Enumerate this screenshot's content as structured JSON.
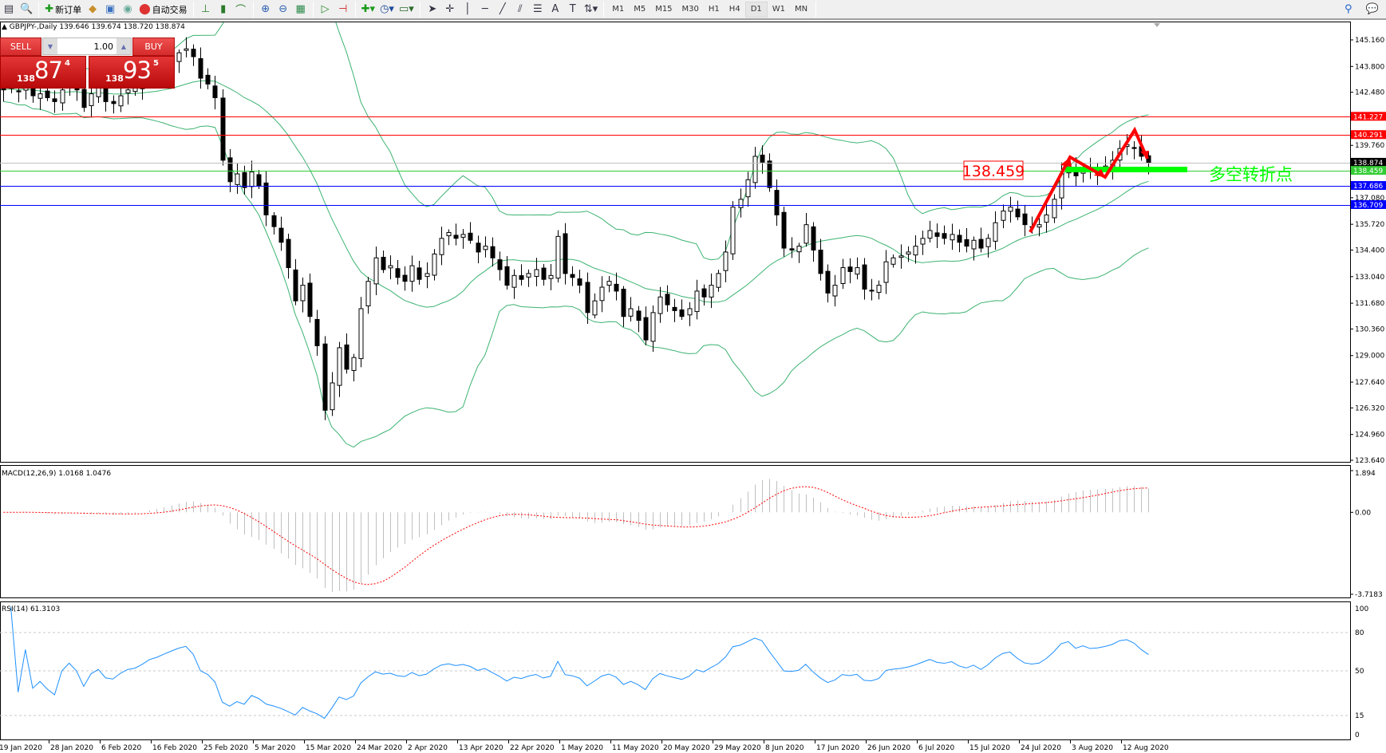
{
  "toolbar": {
    "new_order_label": "新订单",
    "auto_trading_label": "自动交易",
    "timeframes": [
      "M1",
      "M5",
      "M15",
      "M30",
      "H1",
      "H4",
      "D1",
      "W1",
      "MN"
    ],
    "active_timeframe": "D1"
  },
  "chart_header": {
    "symbol_line": "GBPJPY-,Daily  139.646 139.674 138.720 138.874"
  },
  "trade_panel": {
    "sell_label": "SELL",
    "buy_label": "BUY",
    "lot": "1.00",
    "sell_price": {
      "big": "138",
      "main": "87",
      "pip": "4"
    },
    "buy_price": {
      "big": "138",
      "main": "93",
      "pip": "5"
    }
  },
  "chart_data": {
    "type": "candlestick",
    "symbol": "GBPJPY-",
    "period": "Daily",
    "ylim": [
      123.64,
      145.16
    ],
    "price_ticks": [
      "145.160",
      "143.800",
      "142.480",
      "139.760",
      "137.080",
      "135.720",
      "134.400",
      "133.040",
      "131.680",
      "130.360",
      "129.000",
      "127.640",
      "126.320",
      "124.960",
      "123.640"
    ],
    "closes": [
      142.6,
      142.7,
      142.5,
      142.8,
      142.3,
      142.4,
      142.2,
      142.0,
      142.6,
      142.9,
      142.6,
      141.7,
      142.4,
      142.7,
      142.0,
      141.9,
      142.3,
      142.6,
      142.7,
      143.0,
      143.4,
      143.6,
      143.9,
      144.2,
      144.5,
      144.7,
      144.3,
      143.2,
      142.9,
      142.2,
      139.0,
      137.9,
      138.3,
      137.6,
      138.4,
      137.7,
      136.2,
      135.6,
      134.8,
      133.5,
      131.8,
      132.6,
      131.0,
      129.5,
      126.2,
      127.6,
      129.4,
      128.3,
      128.9,
      131.4,
      132.8,
      134.0,
      133.4,
      133.6,
      133.0,
      132.8,
      133.6,
      132.9,
      133.2,
      134.2,
      135.0,
      135.3,
      135.0,
      135.2,
      134.9,
      134.3,
      134.6,
      134.0,
      133.4,
      132.6,
      133.1,
      132.9,
      133.2,
      133.4,
      132.9,
      133.1,
      135.1,
      133.2,
      133.0,
      132.6,
      131.2,
      131.8,
      132.5,
      132.8,
      132.3,
      131.0,
      131.4,
      130.8,
      129.8,
      131.2,
      132.0,
      131.6,
      131.3,
      131.0,
      131.4,
      132.3,
      132.0,
      132.6,
      133.2,
      134.3,
      136.6,
      137.0,
      138.0,
      139.2,
      138.9,
      137.6,
      136.2,
      134.5,
      134.4,
      134.6,
      135.7,
      134.4,
      133.2,
      132.2,
      132.6,
      133.5,
      133.3,
      133.5,
      132.4,
      132.3,
      132.6,
      133.8,
      134.0,
      134.1,
      134.3,
      134.6,
      135.0,
      135.4,
      135.1,
      135.0,
      135.2,
      134.8,
      134.6,
      134.9,
      134.5,
      135.0,
      135.8,
      136.4,
      136.6,
      136.1,
      135.7,
      135.6,
      135.7,
      136.2,
      137.0,
      138.3,
      138.7,
      138.2,
      138.6,
      138.4,
      138.5,
      138.7,
      139.0,
      139.6,
      139.8,
      139.6,
      139.2,
      138.874
    ],
    "date_labels": [
      "19 Jan 2020",
      "28 Jan 2020",
      "6 Feb 2020",
      "16 Feb 2020",
      "25 Feb 2020",
      "5 Mar 2020",
      "15 Mar 2020",
      "24 Mar 2020",
      "2 Apr 2020",
      "13 Apr 2020",
      "22 Apr 2020",
      "1 May 2020",
      "11 May 2020",
      "20 May 2020",
      "29 May 2020",
      "8 Jun 2020",
      "17 Jun 2020",
      "26 Jun 2020",
      "6 Jul 2020",
      "15 Jul 2020",
      "24 Jul 2020",
      "3 Aug 2020",
      "12 Aug 2020"
    ],
    "horizontal_lines": [
      {
        "price": 141.227,
        "label": "141.227",
        "color": "#ff0000"
      },
      {
        "price": 140.291,
        "label": "140.291",
        "color": "#ff0000"
      },
      {
        "price": 138.874,
        "label": "138.874",
        "color": "#c0c0c0",
        "label_bg": "#000000"
      },
      {
        "price": 138.459,
        "label": "138.459",
        "color": "#32cd32"
      },
      {
        "price": 137.686,
        "label": "137.686",
        "color": "#0000ff"
      },
      {
        "price": 136.709,
        "label": "136.709",
        "color": "#0000ff"
      }
    ],
    "annotation": {
      "price_box": "138.459",
      "text": "多空转折点",
      "text_color": "#00ff00",
      "arrow_color": "#ff0000"
    },
    "indicators": {
      "bollinger_color": "#3cb371",
      "macd": {
        "label": "MACD(12,26,9) 1.0168 1.0476",
        "ticks": [
          "1.894",
          "0.00",
          "-3.7183"
        ],
        "ylim": [
          -3.7183,
          1.894
        ],
        "hist_color": "#c0c0c0",
        "signal_color": "#ff0000"
      },
      "rsi": {
        "label": "RSI(14) 61.3103",
        "ticks": [
          "100",
          "80",
          "50",
          "15",
          "0"
        ],
        "levels": [
          80,
          50,
          15
        ],
        "color": "#1e90ff"
      }
    }
  }
}
